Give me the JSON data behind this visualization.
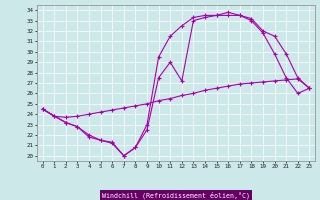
{
  "xlabel": "Windchill (Refroidissement éolien,°C)",
  "xlim": [
    -0.5,
    23.5
  ],
  "ylim": [
    19.5,
    34.5
  ],
  "xticks": [
    0,
    1,
    2,
    3,
    4,
    5,
    6,
    7,
    8,
    9,
    10,
    11,
    12,
    13,
    14,
    15,
    16,
    17,
    18,
    19,
    20,
    21,
    22,
    23
  ],
  "yticks": [
    20,
    21,
    22,
    23,
    24,
    25,
    26,
    27,
    28,
    29,
    30,
    31,
    32,
    33,
    34
  ],
  "color": "#aa00aa",
  "bg_color": "#cce8e8",
  "grid_color": "#ffffff",
  "line1_x": [
    0,
    1,
    2,
    3,
    4,
    5,
    6,
    7,
    8,
    9,
    10,
    11,
    12,
    13,
    14,
    15,
    16,
    17,
    18,
    19,
    20,
    21,
    22,
    23
  ],
  "line1_y": [
    24.5,
    23.8,
    23.7,
    23.8,
    24.0,
    24.2,
    24.4,
    24.6,
    24.8,
    25.0,
    25.3,
    25.5,
    25.8,
    26.0,
    26.3,
    26.5,
    26.7,
    26.9,
    27.0,
    27.1,
    27.2,
    27.3,
    27.4,
    26.5
  ],
  "line2_x": [
    0,
    2,
    3,
    4,
    5,
    6,
    7,
    8,
    9,
    10,
    11,
    12,
    13,
    14,
    15,
    16,
    17,
    18,
    19,
    20,
    21,
    22,
    23
  ],
  "line2_y": [
    24.5,
    23.2,
    22.8,
    22.0,
    21.5,
    21.2,
    20.0,
    20.8,
    22.5,
    27.5,
    29.0,
    27.2,
    33.0,
    33.3,
    33.5,
    33.5,
    33.5,
    33.2,
    32.0,
    31.5,
    29.8,
    27.5,
    26.5
  ],
  "line3_x": [
    0,
    1,
    2,
    3,
    4,
    5,
    6,
    7,
    8,
    9,
    10,
    11,
    12,
    13,
    14,
    15,
    16,
    17,
    18,
    19,
    20,
    21,
    22,
    23
  ],
  "line3_y": [
    24.5,
    23.8,
    23.2,
    22.8,
    21.8,
    21.5,
    21.3,
    20.0,
    20.8,
    23.0,
    29.5,
    31.5,
    32.5,
    33.3,
    33.5,
    33.5,
    33.8,
    33.5,
    33.0,
    31.8,
    29.8,
    27.5,
    26.0,
    26.5
  ]
}
